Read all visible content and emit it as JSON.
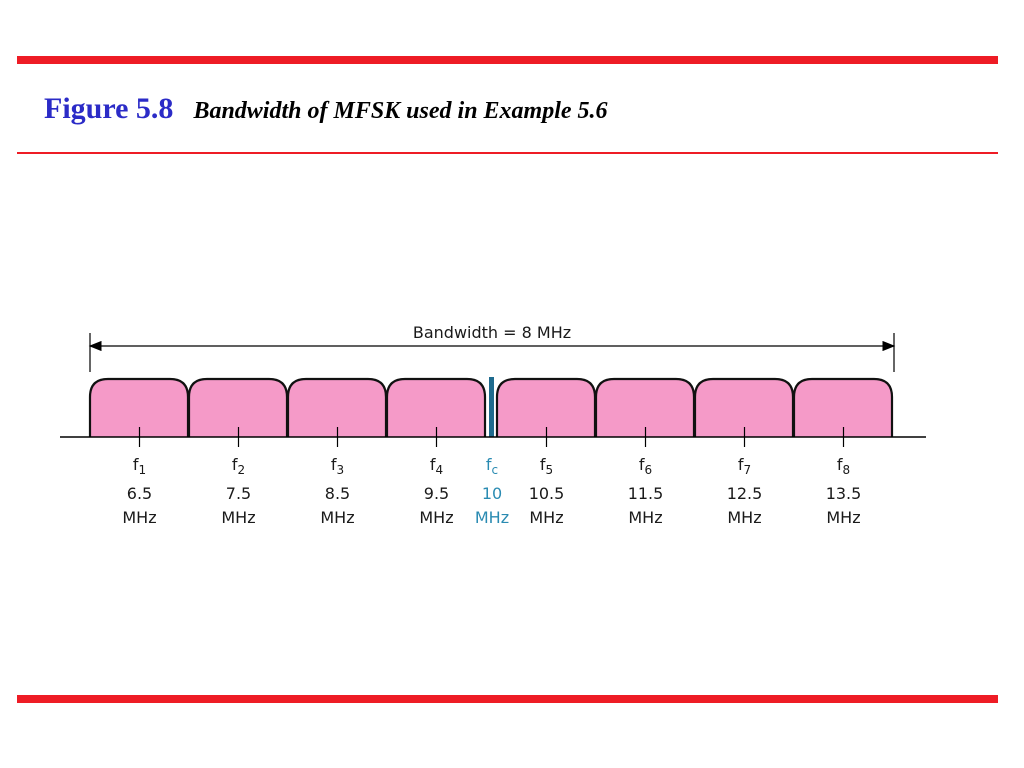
{
  "title": {
    "figure_label": "Figure 5.8",
    "caption": "Bandwidth of MFSK used in Example 5.6"
  },
  "diagram": {
    "bandwidth_label": "Bandwidth = 8 MHz",
    "colors": {
      "accent_rule": "#ee1c25",
      "title_blue": "#2b2bc7",
      "band_fill": "#f59ac8",
      "carrier": "#1f6b8e",
      "carrier_text": "#2a8bb2"
    },
    "frequencies": [
      {
        "name": "f",
        "sub": "1",
        "value": "6.5",
        "unit": "MHz"
      },
      {
        "name": "f",
        "sub": "2",
        "value": "7.5",
        "unit": "MHz"
      },
      {
        "name": "f",
        "sub": "3",
        "value": "8.5",
        "unit": "MHz"
      },
      {
        "name": "f",
        "sub": "4",
        "value": "9.5",
        "unit": "MHz"
      },
      {
        "name": "f",
        "sub": "c",
        "value": "10",
        "unit": "MHz",
        "carrier": true
      },
      {
        "name": "f",
        "sub": "5",
        "value": "10.5",
        "unit": "MHz"
      },
      {
        "name": "f",
        "sub": "6",
        "value": "11.5",
        "unit": "MHz"
      },
      {
        "name": "f",
        "sub": "7",
        "value": "12.5",
        "unit": "MHz"
      },
      {
        "name": "f",
        "sub": "8",
        "value": "13.5",
        "unit": "MHz"
      }
    ]
  }
}
